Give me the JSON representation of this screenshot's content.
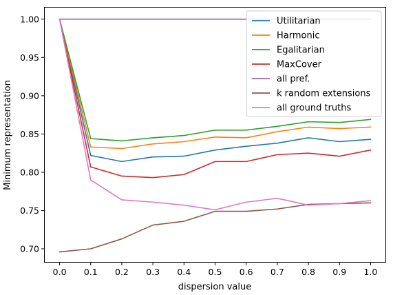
{
  "chart_data": {
    "type": "line",
    "title": "",
    "xlabel": "dispersion value",
    "ylabel": "Minimum representation",
    "xlim": [
      -0.05,
      1.05
    ],
    "ylim": [
      0.682,
      1.016
    ],
    "xticks": [
      0.0,
      0.1,
      0.2,
      0.3,
      0.4,
      0.5,
      0.6,
      0.7,
      0.8,
      0.9,
      1.0
    ],
    "xtick_labels": [
      "0.0",
      "0.1",
      "0.2",
      "0.3",
      "0.4",
      "0.5",
      "0.6",
      "0.7",
      "0.8",
      "0.9",
      "1.0"
    ],
    "yticks": [
      0.7,
      0.75,
      0.8,
      0.85,
      0.9,
      0.95,
      1.0
    ],
    "ytick_labels": [
      "0.70",
      "0.75",
      "0.80",
      "0.85",
      "0.90",
      "0.95",
      "1.00"
    ],
    "grid": false,
    "legend_position": "top-right",
    "x": [
      0.0,
      0.1,
      0.2,
      0.3,
      0.4,
      0.5,
      0.6,
      0.7,
      0.8,
      0.9,
      1.0
    ],
    "series": [
      {
        "name": "Utilitarian",
        "color": "#1f77b4",
        "values": [
          1.0,
          0.822,
          0.814,
          0.82,
          0.821,
          0.829,
          0.834,
          0.838,
          0.845,
          0.84,
          0.843
        ]
      },
      {
        "name": "Harmonic",
        "color": "#ff7f0e",
        "values": [
          1.0,
          0.833,
          0.831,
          0.837,
          0.84,
          0.846,
          0.845,
          0.853,
          0.859,
          0.857,
          0.859
        ]
      },
      {
        "name": "Egalitarian",
        "color": "#2ca02c",
        "values": [
          1.0,
          0.844,
          0.841,
          0.845,
          0.848,
          0.855,
          0.855,
          0.86,
          0.866,
          0.865,
          0.869
        ]
      },
      {
        "name": "MaxCover",
        "color": "#d62728",
        "values": [
          1.0,
          0.807,
          0.795,
          0.793,
          0.797,
          0.814,
          0.814,
          0.823,
          0.825,
          0.821,
          0.829
        ]
      },
      {
        "name": "all pref.",
        "color": "#9467bd",
        "values": [
          1.0,
          1.0,
          1.0,
          1.0,
          1.0,
          1.0,
          1.0,
          1.0,
          1.0,
          1.0,
          1.0
        ]
      },
      {
        "name": "k random extensions",
        "color": "#8c564b",
        "values": [
          0.696,
          0.7,
          0.713,
          0.731,
          0.736,
          0.749,
          0.749,
          0.752,
          0.758,
          0.759,
          0.76
        ]
      },
      {
        "name": "all ground truths",
        "color": "#e377c2",
        "values": [
          1.0,
          0.79,
          0.764,
          0.761,
          0.757,
          0.751,
          0.761,
          0.766,
          0.757,
          0.759,
          0.763
        ]
      }
    ]
  }
}
